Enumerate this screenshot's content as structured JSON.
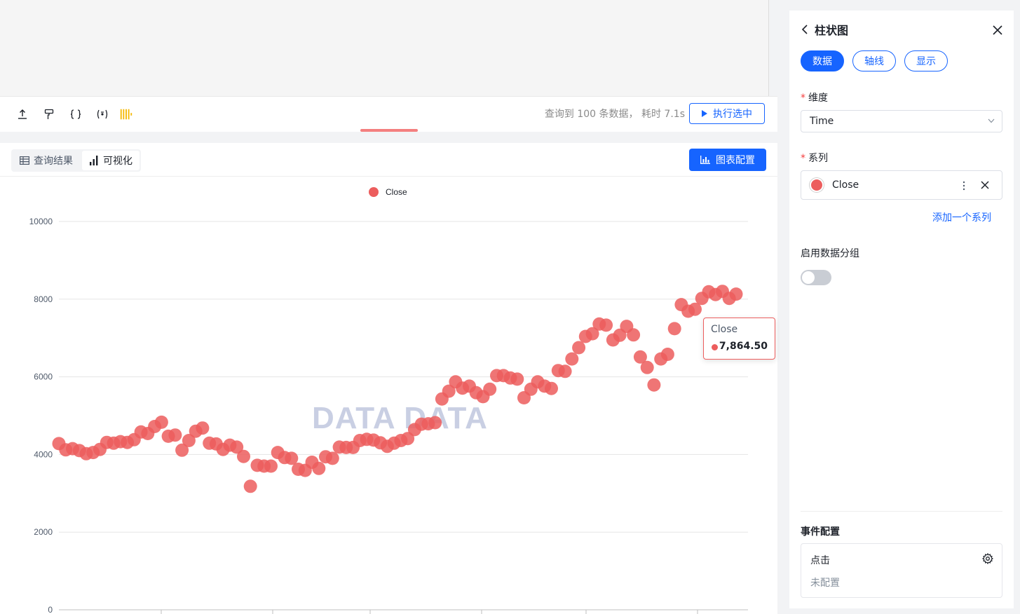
{
  "toolbar": {
    "icons": [
      "upload-icon",
      "format-brush-icon",
      "braces-icon",
      "variable-icon",
      "barcode-icon"
    ],
    "query_info": "查询到 100 条数据， 耗时 7.1s",
    "run_label": "执行选中"
  },
  "results": {
    "tabs": [
      {
        "label": "查询结果",
        "icon": "table-icon",
        "active": false
      },
      {
        "label": "可视化",
        "icon": "bar-chart-icon",
        "active": true
      }
    ],
    "config_label": "图表配置",
    "watermark": "DATA DATA"
  },
  "chart_data": {
    "type": "scatter",
    "series": [
      {
        "name": "Close",
        "color": "#ec5d5d",
        "values": [
          4280,
          4120,
          4150,
          4100,
          4020,
          4050,
          4130,
          4310,
          4290,
          4330,
          4310,
          4380,
          4580,
          4540,
          4720,
          4830,
          4470,
          4500,
          4110,
          4360,
          4600,
          4680,
          4290,
          4270,
          4130,
          4240,
          4190,
          3950,
          3180,
          3720,
          3700,
          3700,
          4050,
          3920,
          3900,
          3620,
          3590,
          3800,
          3640,
          3940,
          3900,
          4190,
          4180,
          4180,
          4360,
          4390,
          4370,
          4300,
          4210,
          4290,
          4360,
          4410,
          4640,
          4780,
          4790,
          4820,
          5430,
          5630,
          5870,
          5710,
          5760,
          5590,
          5490,
          5680,
          6030,
          6030,
          5970,
          5940,
          5460,
          5680,
          5870,
          5760,
          5700,
          6160,
          6140,
          6460,
          6750,
          7040,
          7110,
          7360,
          7330,
          6950,
          7070,
          7300,
          7080,
          6510,
          6240,
          5790,
          6460,
          6580,
          7240,
          7860,
          7690,
          7740,
          8020,
          8190,
          8120,
          8200,
          8020,
          8130
        ]
      }
    ],
    "ylim": [
      0,
      10000
    ],
    "yticks": [
      "0",
      "2000",
      "4000",
      "6000",
      "8000",
      "10000"
    ],
    "legend_position": "top-center",
    "grid": true,
    "tooltip": {
      "series": "Close",
      "value": "7,864.50"
    }
  },
  "panel": {
    "title": "柱状图",
    "tabs": [
      {
        "label": "数据",
        "active": true
      },
      {
        "label": "轴线",
        "active": false
      },
      {
        "label": "显示",
        "active": false
      }
    ],
    "dimension_label": "维度",
    "dimension_value": "Time",
    "series_label": "系列",
    "series_item": "Close",
    "add_series": "添加一个系列",
    "grouping_label": "启用数据分组",
    "grouping_enabled": false,
    "event_section": "事件配置",
    "event_name": "点击",
    "event_status": "未配置"
  }
}
